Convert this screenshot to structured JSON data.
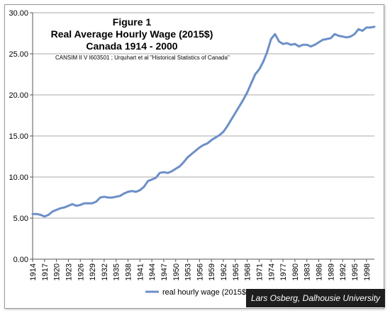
{
  "chart_data": {
    "type": "line",
    "title_lines": [
      "Figure 1",
      "Real Average Hourly Wage (2015$)",
      "Canada 1914 - 2000"
    ],
    "subtitle": "CANSIM II V I603501 ; Urquhart et al \"Historical Statistics of Canada\"",
    "ylim": [
      0,
      30
    ],
    "y_ticks": [
      "0.00",
      "5.00",
      "10.00",
      "15.00",
      "20.00",
      "25.00",
      "30.00"
    ],
    "x_tick_labels": [
      "1914",
      "1917",
      "1920",
      "1923",
      "1926",
      "1929",
      "1932",
      "1935",
      "1938",
      "1941",
      "1944",
      "1947",
      "1950",
      "1953",
      "1956",
      "1959",
      "1962",
      "1965",
      "1968",
      "1971",
      "1974",
      "1977",
      "1980",
      "1983",
      "1986",
      "1989",
      "1992",
      "1995",
      "1998"
    ],
    "grid": "horizontal",
    "legend_position": "bottom",
    "series": [
      {
        "name": "real hourly wage (2015$)",
        "color": "#6b8fc7",
        "x": [
          1914,
          1915,
          1916,
          1917,
          1918,
          1919,
          1920,
          1921,
          1922,
          1923,
          1924,
          1925,
          1926,
          1927,
          1928,
          1929,
          1930,
          1931,
          1932,
          1933,
          1934,
          1935,
          1936,
          1937,
          1938,
          1939,
          1940,
          1941,
          1942,
          1943,
          1944,
          1945,
          1946,
          1947,
          1948,
          1949,
          1950,
          1951,
          1952,
          1953,
          1954,
          1955,
          1956,
          1957,
          1958,
          1959,
          1960,
          1961,
          1962,
          1963,
          1964,
          1965,
          1966,
          1967,
          1968,
          1969,
          1970,
          1971,
          1972,
          1973,
          1974,
          1975,
          1976,
          1977,
          1978,
          1979,
          1980,
          1981,
          1982,
          1983,
          1984,
          1985,
          1986,
          1987,
          1988,
          1989,
          1990,
          1991,
          1992,
          1993,
          1994,
          1995,
          1996,
          1997,
          1998,
          1999,
          2000
        ],
        "values": [
          5.5,
          5.5,
          5.4,
          5.2,
          5.4,
          5.8,
          6.0,
          6.2,
          6.3,
          6.5,
          6.7,
          6.5,
          6.6,
          6.8,
          6.8,
          6.8,
          7.0,
          7.5,
          7.6,
          7.5,
          7.5,
          7.6,
          7.7,
          8.0,
          8.2,
          8.3,
          8.2,
          8.4,
          8.8,
          9.5,
          9.7,
          9.9,
          10.5,
          10.6,
          10.5,
          10.7,
          11.0,
          11.3,
          11.8,
          12.4,
          12.8,
          13.2,
          13.6,
          13.9,
          14.1,
          14.5,
          14.8,
          15.1,
          15.5,
          16.2,
          17.0,
          17.8,
          18.6,
          19.4,
          20.3,
          21.4,
          22.5,
          23.1,
          24.0,
          25.2,
          26.8,
          27.4,
          26.5,
          26.2,
          26.3,
          26.1,
          26.2,
          25.9,
          26.1,
          26.1,
          25.9,
          26.1,
          26.4,
          26.7,
          26.8,
          26.9,
          27.4,
          27.2,
          27.1,
          27.0,
          27.1,
          27.4,
          28.0,
          27.8,
          28.2,
          28.2,
          28.3
        ]
      }
    ]
  },
  "credit": "Lars Osberg, Dalhousie University"
}
